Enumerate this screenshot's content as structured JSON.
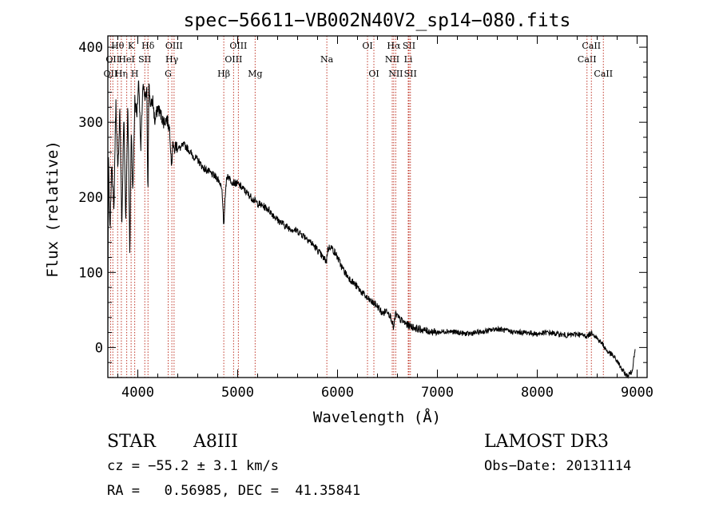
{
  "chart_data": {
    "type": "line",
    "title": "spec−56611−VB002N40V2_sp14−080.fits",
    "xlabel": "Wavelength (Å)",
    "ylabel": "Flux (relative)",
    "xlim": [
      3700,
      9100
    ],
    "ylim": [
      -40,
      415
    ],
    "xticks": [
      4000,
      5000,
      6000,
      7000,
      8000,
      9000
    ],
    "yticks": [
      0,
      100,
      200,
      300,
      400
    ],
    "series": [
      {
        "name": "flux",
        "x": [
          3700,
          3705,
          3720,
          3740,
          3760,
          3780,
          3800,
          3820,
          3840,
          3860,
          3880,
          3900,
          3920,
          3935,
          3950,
          3970,
          3990,
          4010,
          4030,
          4050,
          4070,
          4090,
          4101,
          4110,
          4130,
          4150,
          4170,
          4200,
          4230,
          4260,
          4290,
          4320,
          4340,
          4350,
          4360,
          4380,
          4420,
          4460,
          4500,
          4550,
          4600,
          4650,
          4700,
          4750,
          4800,
          4840,
          4861,
          4870,
          4880,
          4900,
          4920,
          4950,
          5000,
          5050,
          5100,
          5150,
          5200,
          5300,
          5400,
          5500,
          5600,
          5700,
          5800,
          5850,
          5890,
          5900,
          5930,
          5980,
          6000,
          6050,
          6100,
          6200,
          6300,
          6400,
          6450,
          6500,
          6540,
          6563,
          6580,
          6620,
          6700,
          6800,
          6900,
          7000,
          7100,
          7200,
          7300,
          7400,
          7500,
          7600,
          7700,
          7800,
          7900,
          8000,
          8100,
          8200,
          8300,
          8400,
          8500,
          8550,
          8600,
          8650,
          8700,
          8750,
          8800,
          8850,
          8900,
          8950,
          8980
        ],
        "values": [
          0,
          260,
          150,
          250,
          180,
          330,
          230,
          320,
          160,
          310,
          170,
          330,
          120,
          300,
          200,
          330,
          310,
          360,
          260,
          350,
          330,
          340,
          200,
          350,
          320,
          330,
          300,
          320,
          310,
          300,
          305,
          290,
          240,
          280,
          260,
          270,
          265,
          270,
          265,
          255,
          250,
          240,
          235,
          230,
          225,
          215,
          160,
          190,
          215,
          230,
          225,
          220,
          218,
          212,
          205,
          198,
          192,
          185,
          170,
          160,
          155,
          145,
          130,
          120,
          115,
          130,
          135,
          125,
          120,
          105,
          95,
          80,
          65,
          55,
          45,
          50,
          38,
          25,
          45,
          38,
          30,
          25,
          22,
          20,
          22,
          20,
          18,
          20,
          22,
          25,
          22,
          20,
          20,
          18,
          20,
          18,
          16,
          18,
          15,
          20,
          12,
          5,
          -5,
          -10,
          -18,
          -30,
          -38,
          -32,
          0
        ]
      }
    ],
    "lines": [
      {
        "x": 3727,
        "label": "OII",
        "row": 3
      },
      {
        "x": 3750,
        "label": "OII",
        "row": 2
      },
      {
        "x": 3798,
        "label": "Hθ",
        "row": 1
      },
      {
        "x": 3835,
        "label": "Hη",
        "row": 3
      },
      {
        "x": 3889,
        "label": "HeI",
        "row": 2
      },
      {
        "x": 3933,
        "label": "K",
        "row": 1
      },
      {
        "x": 3969,
        "label": "H",
        "row": 3
      },
      {
        "x": 4070,
        "label": "SII",
        "row": 2
      },
      {
        "x": 4102,
        "label": "Hδ",
        "row": 1
      },
      {
        "x": 4304,
        "label": "G",
        "row": 3
      },
      {
        "x": 4341,
        "label": "Hγ",
        "row": 2
      },
      {
        "x": 4363,
        "label": "OIII",
        "row": 1
      },
      {
        "x": 4861,
        "label": "Hβ",
        "row": 3
      },
      {
        "x": 4959,
        "label": "OIII",
        "row": 2
      },
      {
        "x": 5007,
        "label": "OIII",
        "row": 1
      },
      {
        "x": 5175,
        "label": "Mg",
        "row": 3
      },
      {
        "x": 5893,
        "label": "Na",
        "row": 2
      },
      {
        "x": 6300,
        "label": "OI",
        "row": 1
      },
      {
        "x": 6364,
        "label": "OI",
        "row": 3
      },
      {
        "x": 6548,
        "label": "NII",
        "row": 2
      },
      {
        "x": 6563,
        "label": "Hα",
        "row": 1
      },
      {
        "x": 6583,
        "label": "NII",
        "row": 3
      },
      {
        "x": 6708,
        "label": "Li",
        "row": 2
      },
      {
        "x": 6716,
        "label": "SII",
        "row": 1
      },
      {
        "x": 6730,
        "label": "SII",
        "row": 3
      },
      {
        "x": 8498,
        "label": "CaII",
        "row": 2
      },
      {
        "x": 8542,
        "label": "CaII",
        "row": 1
      },
      {
        "x": 8662,
        "label": "CaII",
        "row": 3
      }
    ]
  },
  "info": {
    "object_class": "STAR",
    "subclass": "A8III",
    "survey": "LAMOST DR3",
    "redshift": "cz = −55.2 ± 3.1 km/s",
    "obs_date": "Obs−Date: 20131114",
    "coords": "RA =   0.56985, DEC =  41.35841"
  }
}
